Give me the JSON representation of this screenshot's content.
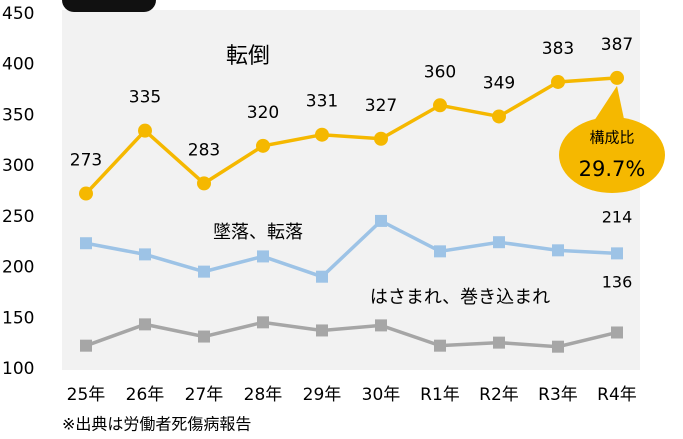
{
  "chart_data": {
    "type": "line",
    "categories": [
      "25年",
      "26年",
      "27年",
      "28年",
      "29年",
      "30年",
      "R1年",
      "R2年",
      "R3年",
      "R4年"
    ],
    "series": [
      {
        "name": "転倒",
        "color": "#f5b800",
        "marker": "circle",
        "values": [
          273,
          335,
          283,
          320,
          331,
          327,
          360,
          349,
          383,
          387
        ]
      },
      {
        "name": "墜落、転落",
        "color": "#9dc3e6",
        "marker": "square",
        "values": [
          224,
          213,
          196,
          211,
          191,
          246,
          216,
          225,
          217,
          214
        ]
      },
      {
        "name": "はさまれ、巻き込まれ",
        "color": "#a6a6a6",
        "marker": "square",
        "values": [
          123,
          144,
          132,
          146,
          138,
          143,
          123,
          126,
          122,
          136
        ]
      }
    ],
    "ylim": [
      100,
      450
    ],
    "yticks": [
      100,
      150,
      200,
      250,
      300,
      350,
      400,
      450
    ],
    "annotation": {
      "label": "構成比",
      "value": "29.7%"
    },
    "note": "※出典は労働者死傷病報告"
  }
}
